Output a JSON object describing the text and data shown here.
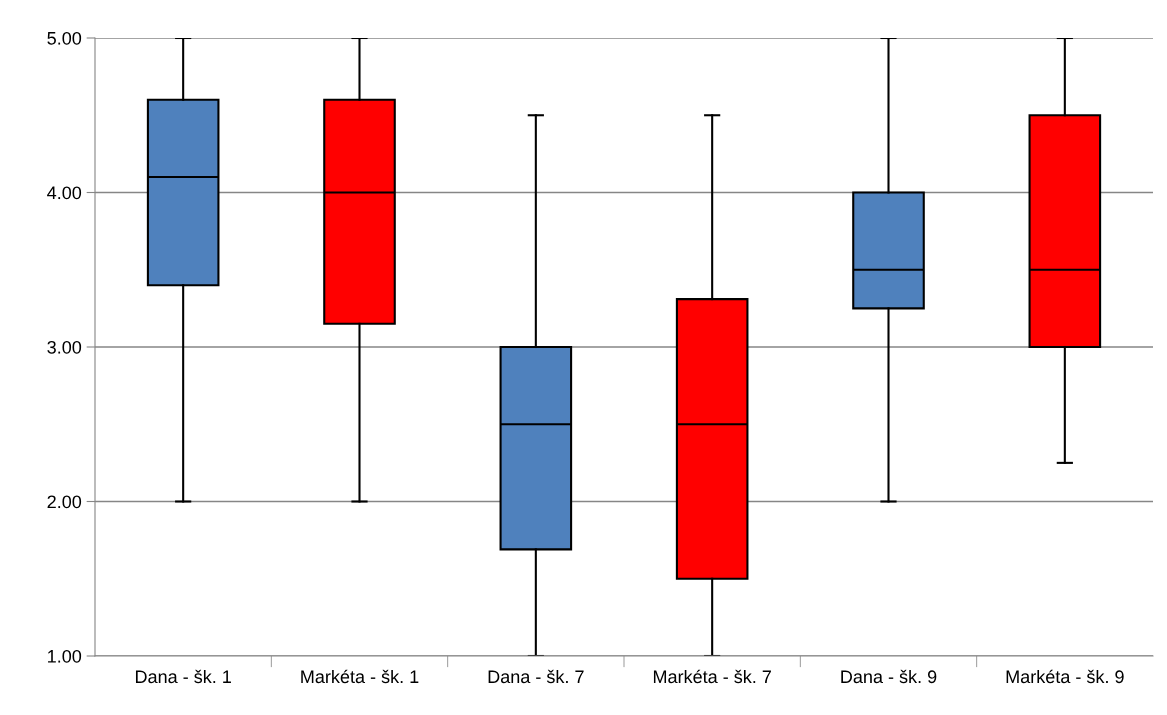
{
  "chart_data": {
    "type": "box",
    "categories": [
      "Dana - šk. 1",
      "Markéta - šk. 1",
      "Dana - šk. 7",
      "Markéta - šk. 7",
      "Dana - šk. 9",
      "Markéta - šk. 9"
    ],
    "boxes": [
      {
        "low": 2.0,
        "q1": 3.4,
        "median": 4.1,
        "q3": 4.6,
        "high": 5.0
      },
      {
        "low": 2.0,
        "q1": 3.15,
        "median": 4.0,
        "q3": 4.6,
        "high": 5.0
      },
      {
        "low": 1.0,
        "q1": 1.69,
        "median": 2.5,
        "q3": 3.0,
        "high": 4.5
      },
      {
        "low": 1.0,
        "q1": 1.5,
        "median": 2.5,
        "q3": 3.31,
        "high": 4.5
      },
      {
        "low": 2.0,
        "q1": 3.25,
        "median": 3.5,
        "q3": 4.0,
        "high": 5.0
      },
      {
        "low": 2.25,
        "q1": 3.0,
        "median": 3.5,
        "q3": 4.5,
        "high": 5.0
      }
    ],
    "colors": [
      "#4f81bd",
      "#ff0000",
      "#4f81bd",
      "#ff0000",
      "#4f81bd",
      "#ff0000"
    ],
    "ylim": [
      1.0,
      5.0
    ],
    "yticks": [
      {
        "value": 1,
        "label": "1.00"
      },
      {
        "value": 2,
        "label": "2.00"
      },
      {
        "value": 3,
        "label": "3.00"
      },
      {
        "value": 4,
        "label": "4.00"
      },
      {
        "value": 5,
        "label": "5.00"
      }
    ],
    "grid": "y"
  }
}
